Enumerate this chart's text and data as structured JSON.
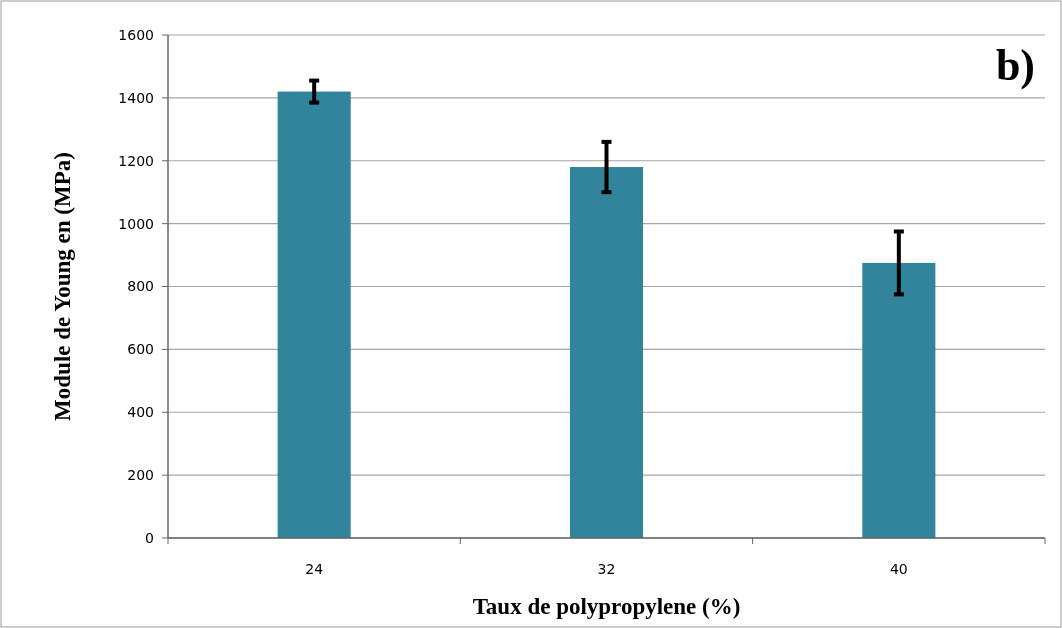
{
  "chart_data": {
    "type": "bar",
    "categories": [
      "24",
      "32",
      "40"
    ],
    "values": [
      1420,
      1180,
      875
    ],
    "errors": [
      35,
      80,
      100
    ],
    "color": "#31849b",
    "xlabel": "Taux de polypropylene (%)",
    "ylabel": "Module de Young en (MPa)",
    "annotations": [
      "b)"
    ],
    "ylim": [
      0,
      1600
    ],
    "yticks": [
      0,
      200,
      400,
      600,
      800,
      1000,
      1200,
      1400,
      1600
    ],
    "grid": "y"
  }
}
